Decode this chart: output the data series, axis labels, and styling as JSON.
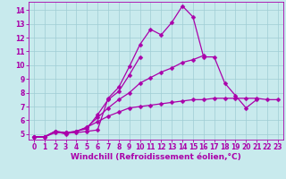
{
  "background_color": "#c8eaed",
  "grid_color": "#9fcdd4",
  "line_color": "#aa00aa",
  "spine_color": "#aa00aa",
  "marker": "D",
  "marker_size": 2.5,
  "linewidth": 0.9,
  "xlabel": "Windchill (Refroidissement éolien,°C)",
  "xlabel_fontsize": 6.5,
  "tick_fontsize": 5.5,
  "xlim": [
    -0.5,
    23.5
  ],
  "ylim": [
    4.6,
    14.6
  ],
  "yticks": [
    5,
    6,
    7,
    8,
    9,
    10,
    11,
    12,
    13,
    14
  ],
  "xticks": [
    0,
    1,
    2,
    3,
    4,
    5,
    6,
    7,
    8,
    9,
    10,
    11,
    12,
    13,
    14,
    15,
    16,
    17,
    18,
    19,
    20,
    21,
    22,
    23
  ],
  "series": [
    {
      "x": [
        0,
        1,
        2,
        3,
        4,
        5,
        6,
        7,
        8,
        9,
        10,
        11,
        12,
        13,
        14,
        15,
        16,
        17,
        18,
        19,
        20,
        21
      ],
      "y": [
        4.8,
        4.8,
        5.2,
        5.1,
        5.1,
        5.2,
        5.3,
        7.6,
        8.4,
        9.9,
        11.5,
        12.6,
        12.2,
        13.1,
        14.3,
        13.5,
        10.6,
        10.6,
        8.7,
        7.8,
        6.9,
        7.5
      ]
    },
    {
      "x": [
        0,
        1,
        2,
        3,
        4,
        5,
        6,
        7,
        8,
        9,
        10
      ],
      "y": [
        4.8,
        4.8,
        5.2,
        5.0,
        5.2,
        5.4,
        6.4,
        7.5,
        8.1,
        9.3,
        10.6
      ]
    },
    {
      "x": [
        0,
        1,
        2,
        3,
        4,
        5,
        6,
        7,
        8,
        9,
        10,
        11,
        12,
        13,
        14,
        15,
        16
      ],
      "y": [
        4.8,
        4.8,
        5.2,
        5.1,
        5.2,
        5.5,
        6.2,
        6.9,
        7.5,
        8.0,
        8.7,
        9.1,
        9.5,
        9.8,
        10.2,
        10.4,
        10.7
      ]
    },
    {
      "x": [
        0,
        1,
        2,
        3,
        4,
        5,
        6,
        7,
        8,
        9,
        10,
        11,
        12,
        13,
        14,
        15,
        16,
        17,
        18,
        19,
        20,
        21,
        22,
        23
      ],
      "y": [
        4.8,
        4.8,
        5.1,
        5.1,
        5.2,
        5.5,
        5.9,
        6.3,
        6.6,
        6.9,
        7.0,
        7.1,
        7.2,
        7.3,
        7.4,
        7.5,
        7.5,
        7.6,
        7.6,
        7.6,
        7.6,
        7.6,
        7.5,
        7.5
      ]
    }
  ]
}
